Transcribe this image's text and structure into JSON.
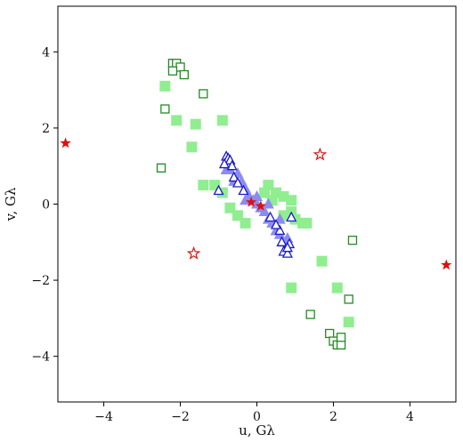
{
  "chart_data": {
    "type": "scatter",
    "xlabel": "u, Gλ",
    "ylabel": "v, Gλ",
    "xlim": [
      -5.2,
      5.2
    ],
    "ylim": [
      -5.2,
      5.2
    ],
    "x_ticks": [
      -4,
      -2,
      0,
      2,
      4
    ],
    "y_ticks": [
      -4,
      -2,
      0,
      2,
      4
    ],
    "x_tick_labels": [
      "−4",
      "−2",
      "0",
      "2",
      "4"
    ],
    "y_tick_labels": [
      "−4",
      "−2",
      "0",
      "2",
      "4"
    ],
    "grid": false,
    "legend": false,
    "series": [
      {
        "marker": "filled-square",
        "color": "#90ee90",
        "points": [
          [
            -2.4,
            3.1
          ],
          [
            -2.1,
            2.2
          ],
          [
            -1.7,
            1.5
          ],
          [
            -1.6,
            2.1
          ],
          [
            -0.9,
            2.2
          ],
          [
            -1.4,
            0.5
          ],
          [
            -1.1,
            0.5
          ],
          [
            -0.9,
            0.3
          ],
          [
            -0.7,
            -0.1
          ],
          [
            -0.5,
            -0.3
          ],
          [
            -0.3,
            -0.5
          ],
          [
            0.2,
            0.3
          ],
          [
            0.3,
            0.5
          ],
          [
            0.5,
            0.3
          ],
          [
            0.4,
            0.1
          ],
          [
            0.7,
            0.2
          ],
          [
            0.9,
            0.1
          ],
          [
            0.7,
            -0.3
          ],
          [
            0.9,
            -0.2
          ],
          [
            1.0,
            -0.4
          ],
          [
            1.2,
            -0.5
          ],
          [
            1.3,
            -0.5
          ],
          [
            1.7,
            -1.5
          ],
          [
            2.1,
            -2.2
          ],
          [
            0.9,
            -2.2
          ],
          [
            2.4,
            -3.1
          ]
        ]
      },
      {
        "marker": "open-square",
        "color": "#228b22",
        "points": [
          [
            -2.2,
            3.7
          ],
          [
            -2.1,
            3.7
          ],
          [
            -2.0,
            3.6
          ],
          [
            -1.9,
            3.4
          ],
          [
            -2.2,
            3.5
          ],
          [
            -2.4,
            2.5
          ],
          [
            -2.5,
            0.95
          ],
          [
            -1.4,
            2.9
          ],
          [
            2.5,
            -0.95
          ],
          [
            2.4,
            -2.5
          ],
          [
            1.4,
            -2.9
          ],
          [
            1.9,
            -3.4
          ],
          [
            2.0,
            -3.6
          ],
          [
            2.1,
            -3.7
          ],
          [
            2.2,
            -3.7
          ],
          [
            2.2,
            -3.5
          ]
        ]
      },
      {
        "marker": "filled-triangle",
        "color": "#8c8cf0",
        "points": [
          [
            -0.7,
            0.9
          ],
          [
            -0.5,
            0.8
          ],
          [
            -0.4,
            0.6
          ],
          [
            -0.3,
            0.4
          ],
          [
            -0.2,
            0.2
          ],
          [
            -0.1,
            0.1
          ],
          [
            0.0,
            0.0
          ],
          [
            0.1,
            -0.1
          ],
          [
            0.2,
            -0.2
          ],
          [
            0.3,
            -0.4
          ],
          [
            0.4,
            -0.5
          ],
          [
            0.5,
            -0.7
          ],
          [
            0.6,
            -0.8
          ],
          [
            0.7,
            -1.0
          ],
          [
            -0.6,
            0.6
          ],
          [
            -0.3,
            0.1
          ],
          [
            0.3,
            0.0
          ],
          [
            0.6,
            -0.4
          ],
          [
            0.8,
            -0.9
          ],
          [
            -0.8,
            0.9
          ],
          [
            0.0,
            0.2
          ]
        ]
      },
      {
        "marker": "open-triangle",
        "color": "#1a1acc",
        "points": [
          [
            -0.8,
            1.25
          ],
          [
            -0.75,
            1.2
          ],
          [
            -0.7,
            1.15
          ],
          [
            -0.65,
            1.0
          ],
          [
            -0.85,
            1.05
          ],
          [
            -1.0,
            0.35
          ],
          [
            -0.6,
            0.7
          ],
          [
            -0.5,
            0.55
          ],
          [
            -0.35,
            0.35
          ],
          [
            0.9,
            -0.35
          ],
          [
            0.6,
            -0.7
          ],
          [
            0.5,
            -0.55
          ],
          [
            0.35,
            -0.35
          ],
          [
            0.75,
            -1.2
          ],
          [
            0.7,
            -1.25
          ],
          [
            0.8,
            -1.3
          ],
          [
            0.85,
            -1.05
          ],
          [
            0.65,
            -1.0
          ],
          [
            0.8,
            -1.15
          ]
        ]
      },
      {
        "marker": "filled-star",
        "color": "#dd1111",
        "points": [
          [
            -5.0,
            1.6
          ],
          [
            4.95,
            -1.6
          ],
          [
            -0.15,
            0.05
          ],
          [
            0.1,
            -0.05
          ]
        ]
      },
      {
        "marker": "open-star",
        "color": "#dd1111",
        "points": [
          [
            1.65,
            1.3
          ],
          [
            -1.65,
            -1.3
          ]
        ]
      }
    ]
  }
}
